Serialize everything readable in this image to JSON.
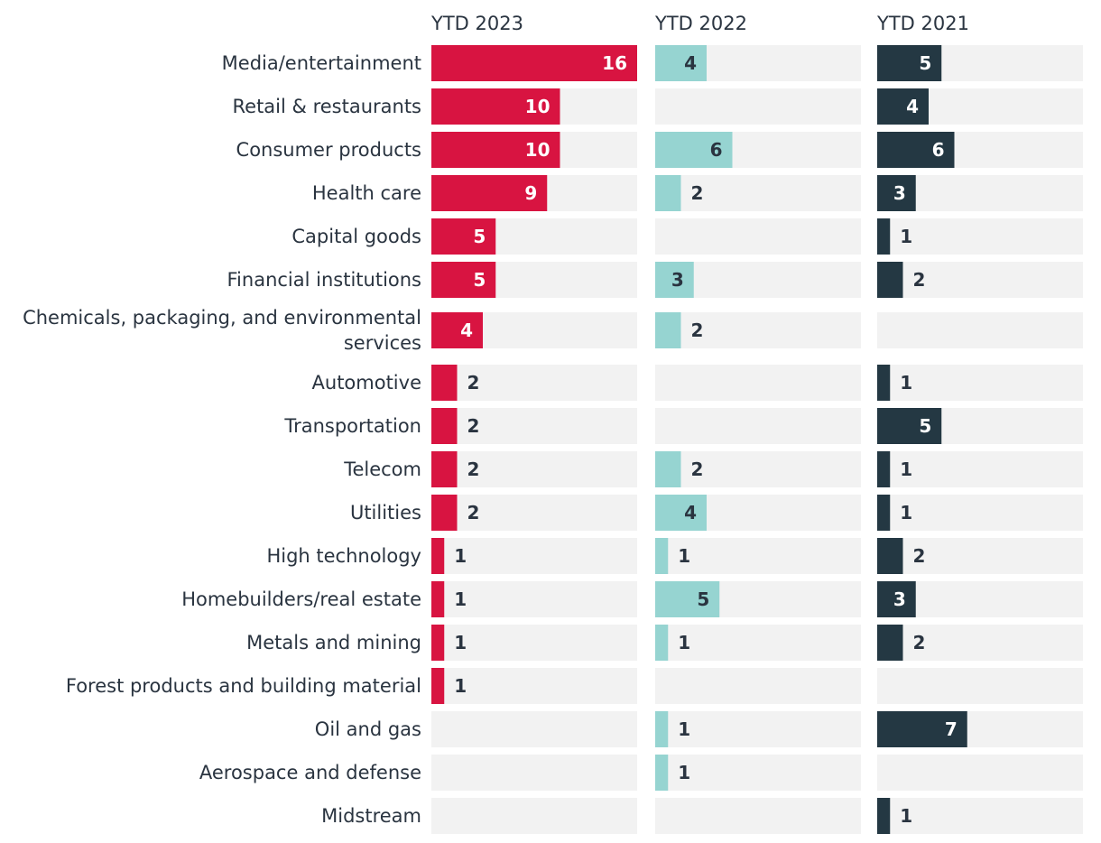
{
  "chart_data": {
    "type": "bar",
    "orientation": "horizontal",
    "layout": "small-multiples",
    "xlim": [
      0,
      16
    ],
    "grid": false,
    "categories": [
      "Media/entertainment",
      "Retail & restaurants",
      "Consumer products",
      "Health care",
      "Capital goods",
      "Financial institutions",
      "Chemicals, packaging, and environmental services",
      "Automotive",
      "Transportation",
      "Telecom",
      "Utilities",
      "High technology",
      "Homebuilders/real estate",
      "Metals and mining",
      "Forest products and building material",
      "Oil and gas",
      "Aerospace and defense",
      "Midstream"
    ],
    "series": [
      {
        "name": "YTD 2023",
        "color": "#d81441",
        "values": [
          16,
          10,
          10,
          9,
          5,
          5,
          4,
          2,
          2,
          2,
          2,
          1,
          1,
          1,
          1,
          null,
          null,
          null
        ]
      },
      {
        "name": "YTD 2022",
        "color": "#96d4d1",
        "values": [
          4,
          null,
          6,
          2,
          null,
          3,
          2,
          null,
          null,
          2,
          4,
          1,
          5,
          1,
          null,
          1,
          1,
          null
        ]
      },
      {
        "name": "YTD 2021",
        "color": "#243843",
        "values": [
          5,
          4,
          6,
          3,
          1,
          2,
          null,
          1,
          5,
          1,
          1,
          2,
          3,
          2,
          null,
          7,
          null,
          1
        ]
      }
    ]
  },
  "colors": {
    "track": "#f2f2f2",
    "text": "#2a3440",
    "label_inside": "#ffffff"
  }
}
